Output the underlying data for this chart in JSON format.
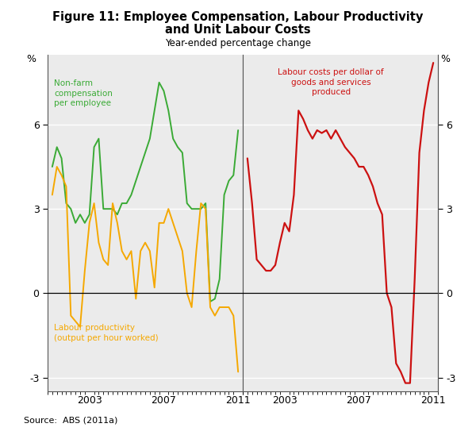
{
  "title_line1": "Figure 11: Employee Compensation, Labour Productivity",
  "title_line2": "and Unit Labour Costs",
  "subtitle": "Year-ended percentage change",
  "source": "Source:  ABS (2011a)",
  "ylim": [
    -3.5,
    8.5
  ],
  "yticks": [
    -3,
    0,
    3,
    6
  ],
  "color_green": "#3aaa35",
  "color_orange": "#f5a800",
  "color_red": "#cc1111",
  "color_background": "#ebebeb",
  "label_green": "Non-farm\ncompensation\nper employee",
  "label_orange": "Labour productivity\n(output per hour worked)",
  "label_red": "Labour costs per dollar of\ngoods and services\nproduced",
  "green_x": [
    2001.0,
    2001.25,
    2001.5,
    2001.75,
    2002.0,
    2002.25,
    2002.5,
    2002.75,
    2003.0,
    2003.25,
    2003.5,
    2003.75,
    2004.0,
    2004.25,
    2004.5,
    2004.75,
    2005.0,
    2005.25,
    2005.5,
    2005.75,
    2006.0,
    2006.25,
    2006.5,
    2006.75,
    2007.0,
    2007.25,
    2007.5,
    2007.75,
    2008.0,
    2008.25,
    2008.5,
    2008.75,
    2009.0,
    2009.25,
    2009.5,
    2009.75,
    2010.0,
    2010.25,
    2010.5,
    2010.75,
    2011.0
  ],
  "green_y": [
    4.5,
    5.2,
    4.8,
    3.2,
    3.0,
    2.5,
    2.8,
    2.5,
    2.8,
    5.2,
    5.5,
    3.0,
    3.0,
    3.0,
    2.8,
    3.2,
    3.2,
    3.5,
    4.0,
    4.5,
    5.0,
    5.5,
    6.5,
    7.5,
    7.2,
    6.5,
    5.5,
    5.2,
    5.0,
    3.2,
    3.0,
    3.0,
    3.0,
    3.2,
    -0.3,
    -0.2,
    0.5,
    3.5,
    4.0,
    4.2,
    5.8
  ],
  "orange_x": [
    2001.0,
    2001.25,
    2001.5,
    2001.75,
    2002.0,
    2002.25,
    2002.5,
    2002.75,
    2003.0,
    2003.25,
    2003.5,
    2003.75,
    2004.0,
    2004.25,
    2004.5,
    2004.75,
    2005.0,
    2005.25,
    2005.5,
    2005.75,
    2006.0,
    2006.25,
    2006.5,
    2006.75,
    2007.0,
    2007.25,
    2007.5,
    2007.75,
    2008.0,
    2008.25,
    2008.5,
    2008.75,
    2009.0,
    2009.25,
    2009.5,
    2009.75,
    2010.0,
    2010.25,
    2010.5,
    2010.75,
    2011.0
  ],
  "orange_y": [
    3.5,
    4.5,
    4.2,
    3.8,
    -0.8,
    -1.0,
    -1.2,
    0.8,
    2.5,
    3.2,
    1.8,
    1.2,
    1.0,
    3.2,
    2.5,
    1.5,
    1.2,
    1.5,
    -0.2,
    1.5,
    1.8,
    1.5,
    0.2,
    2.5,
    2.5,
    3.0,
    2.5,
    2.0,
    1.5,
    0.0,
    -0.5,
    1.5,
    3.2,
    3.0,
    -0.5,
    -0.8,
    -0.5,
    -0.5,
    -0.5,
    -0.8,
    -2.8
  ],
  "red_x": [
    2001.0,
    2001.25,
    2001.5,
    2001.75,
    2002.0,
    2002.25,
    2002.5,
    2002.75,
    2003.0,
    2003.25,
    2003.5,
    2003.75,
    2004.0,
    2004.25,
    2004.5,
    2004.75,
    2005.0,
    2005.25,
    2005.5,
    2005.75,
    2006.0,
    2006.25,
    2006.5,
    2006.75,
    2007.0,
    2007.25,
    2007.5,
    2007.75,
    2008.0,
    2008.25,
    2008.5,
    2008.75,
    2009.0,
    2009.25,
    2009.5,
    2009.75,
    2010.0,
    2010.25,
    2010.5,
    2010.75,
    2011.0
  ],
  "red_y": [
    4.8,
    3.2,
    1.2,
    1.0,
    0.8,
    0.8,
    1.0,
    1.8,
    2.5,
    2.2,
    3.5,
    6.5,
    6.2,
    5.8,
    5.5,
    5.8,
    5.7,
    5.8,
    5.5,
    5.8,
    5.5,
    5.2,
    5.0,
    4.8,
    4.5,
    4.5,
    4.2,
    3.8,
    3.2,
    2.8,
    0.0,
    -0.5,
    -2.5,
    -2.8,
    -3.2,
    -3.2,
    0.5,
    5.0,
    6.5,
    7.5,
    8.2
  ]
}
